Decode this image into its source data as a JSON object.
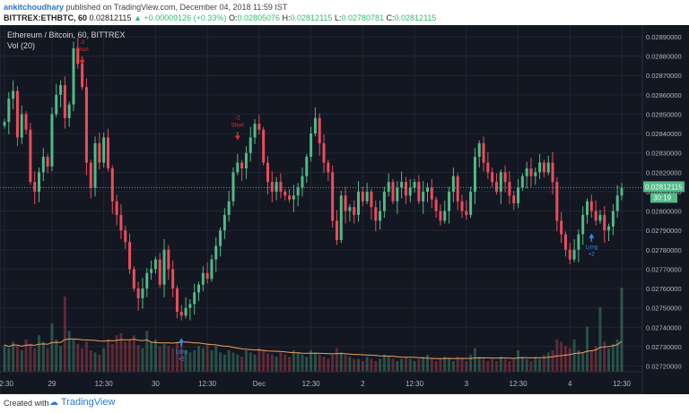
{
  "header": {
    "author": "ankitchoudhary",
    "published_text": "published on TradingView.com, December 04, 2018 11:59 IST",
    "symbol": "BITTREX:ETHBTC, 60",
    "last": "0.02812115",
    "change": "▲ +0.00009126 (+0.33%)",
    "o_label": "O:",
    "o_value": "0.02805076",
    "h_label": "H:",
    "h_value": "0.02812115",
    "l_label": "L:",
    "l_value": "0.02780781",
    "c_label": "C:",
    "c_value": "0.02812115"
  },
  "footer": {
    "created_with": "Created with",
    "brand": "TradingView"
  },
  "chart_data": {
    "type": "candlestick",
    "title": "Ethereum / Bitcoin, 60, BITTREX",
    "indicator": "Vol (20)",
    "ylim": [
      0.02717,
      0.02896
    ],
    "y_ticks": [
      "0.02890000",
      "0.02880000",
      "0.02870000",
      "0.02860000",
      "0.02850000",
      "0.02840000",
      "0.02830000",
      "0.02820000",
      "0.02810000",
      "0.02800000",
      "0.02790000",
      "0.02780000",
      "0.02770000",
      "0.02760000",
      "0.02750000",
      "0.02740000",
      "0.02730000",
      "0.02720000"
    ],
    "x_ticks": [
      {
        "label": "12:30",
        "i": 0
      },
      {
        "label": "29",
        "i": 11
      },
      {
        "label": "12:30",
        "i": 23
      },
      {
        "label": "30",
        "i": 35
      },
      {
        "label": "12:30",
        "i": 47
      },
      {
        "label": "Dec",
        "i": 59
      },
      {
        "label": "12:30",
        "i": 71
      },
      {
        "label": "2",
        "i": 83
      },
      {
        "label": "12:30",
        "i": 95
      },
      {
        "label": "3",
        "i": 107
      },
      {
        "label": "12:30",
        "i": 119
      },
      {
        "label": "4",
        "i": 131
      },
      {
        "label": "12:30",
        "i": 143
      }
    ],
    "last_price_label": "0.02812115",
    "countdown": "30:19",
    "colors": {
      "up": "#53b987",
      "down": "#eb4d5c",
      "background": "#131722",
      "grid": "#232632",
      "text": "#b2b5be",
      "signal_short": "#e03131",
      "signal_long": "#2196f3",
      "ma": "#f0a060"
    },
    "closes": [
      0.02846,
      0.02858,
      0.02862,
      0.02838,
      0.0285,
      0.02842,
      0.02815,
      0.0281,
      0.0282,
      0.02828,
      0.02823,
      0.0285,
      0.0286,
      0.02865,
      0.02848,
      0.02855,
      0.02884,
      0.02876,
      0.02864,
      0.02825,
      0.02812,
      0.02835,
      0.02825,
      0.02838,
      0.02822,
      0.02805,
      0.02798,
      0.0279,
      0.02784,
      0.0277,
      0.0276,
      0.02755,
      0.0276,
      0.02768,
      0.0277,
      0.02775,
      0.02762,
      0.0278,
      0.0277,
      0.0276,
      0.02748,
      0.02746,
      0.0275,
      0.02752,
      0.02758,
      0.02762,
      0.02768,
      0.02765,
      0.02775,
      0.02782,
      0.0279,
      0.02798,
      0.02805,
      0.0282,
      0.02825,
      0.02822,
      0.0283,
      0.02838,
      0.02845,
      0.02842,
      0.02825,
      0.02815,
      0.0281,
      0.02815,
      0.0281,
      0.02808,
      0.02806,
      0.02808,
      0.02812,
      0.02818,
      0.02828,
      0.0284,
      0.02848,
      0.02835,
      0.02825,
      0.0282,
      0.02795,
      0.02785,
      0.02808,
      0.028,
      0.02802,
      0.02798,
      0.0281,
      0.02805,
      0.0281,
      0.02802,
      0.02795,
      0.028,
      0.0281,
      0.02815,
      0.02805,
      0.02812,
      0.02815,
      0.02808,
      0.02812,
      0.02815,
      0.02805,
      0.0281,
      0.02812,
      0.02806,
      0.028,
      0.02795,
      0.028,
      0.0281,
      0.02818,
      0.02805,
      0.028,
      0.02798,
      0.0281,
      0.02828,
      0.02835,
      0.02825,
      0.0282,
      0.02815,
      0.0281,
      0.0282,
      0.02815,
      0.02808,
      0.02804,
      0.02812,
      0.02818,
      0.02822,
      0.02818,
      0.0282,
      0.02825,
      0.0282,
      0.02825,
      0.02815,
      0.02795,
      0.02788,
      0.0278,
      0.02775,
      0.0278,
      0.02788,
      0.02798,
      0.02805,
      0.028,
      0.02795,
      0.02798,
      0.0279,
      0.02792,
      0.028,
      0.02808,
      0.02812
    ],
    "volumes": [
      0.25,
      0.22,
      0.28,
      0.24,
      0.2,
      0.3,
      0.26,
      0.22,
      0.34,
      0.28,
      0.22,
      0.45,
      0.3,
      0.24,
      0.7,
      0.38,
      0.3,
      0.26,
      0.22,
      0.28,
      0.2,
      0.18,
      0.16,
      0.22,
      0.3,
      0.26,
      0.34,
      0.36,
      0.28,
      0.3,
      0.34,
      0.25,
      0.22,
      0.38,
      0.28,
      0.3,
      0.24,
      0.26,
      0.24,
      0.22,
      0.28,
      0.26,
      0.2,
      0.18,
      0.2,
      0.24,
      0.22,
      0.26,
      0.2,
      0.24,
      0.18,
      0.16,
      0.2,
      0.18,
      0.16,
      0.14,
      0.2,
      0.18,
      0.16,
      0.22,
      0.2,
      0.17,
      0.16,
      0.14,
      0.18,
      0.16,
      0.14,
      0.2,
      0.18,
      0.16,
      0.14,
      0.2,
      0.18,
      0.16,
      0.14,
      0.12,
      0.16,
      0.22,
      0.18,
      0.16,
      0.14,
      0.12,
      0.12,
      0.1,
      0.14,
      0.12,
      0.1,
      0.12,
      0.16,
      0.14,
      0.12,
      0.1,
      0.12,
      0.14,
      0.12,
      0.1,
      0.12,
      0.14,
      0.16,
      0.12,
      0.1,
      0.12,
      0.14,
      0.12,
      0.1,
      0.14,
      0.12,
      0.1,
      0.16,
      0.22,
      0.14,
      0.12,
      0.1,
      0.12,
      0.1,
      0.14,
      0.12,
      0.1,
      0.12,
      0.2,
      0.14,
      0.12,
      0.1,
      0.14,
      0.12,
      0.16,
      0.18,
      0.2,
      0.3,
      0.28,
      0.24,
      0.22,
      0.3,
      0.2,
      0.18,
      0.42,
      0.2,
      0.24,
      0.6,
      0.28,
      0.22,
      0.26,
      0.3,
      0.78
    ],
    "signals": [
      {
        "i": 18,
        "type": "short",
        "labels": [
          "-2",
          "Short"
        ],
        "text": "Short"
      },
      {
        "i": 54,
        "type": "short",
        "labels": [
          "-2",
          "Short"
        ],
        "text": "Short"
      },
      {
        "i": 41,
        "type": "long",
        "labels": [
          "Long",
          "+2"
        ],
        "text": "Long"
      },
      {
        "i": 136,
        "type": "long",
        "labels": [
          "Long",
          "+2"
        ],
        "text": "Long"
      }
    ]
  }
}
